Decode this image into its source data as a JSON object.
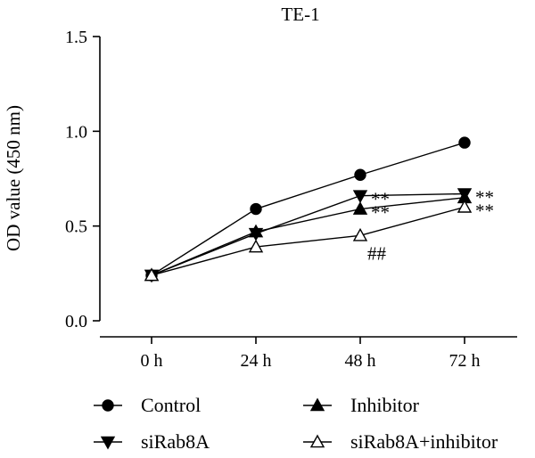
{
  "chart_data": {
    "type": "line",
    "title": "TE-1",
    "xlabel": "",
    "ylabel": "OD value (450 nm)",
    "categories": [
      "0 h",
      "24 h",
      "48 h",
      "72 h"
    ],
    "ylim": [
      0.0,
      1.5
    ],
    "yticks": [
      "0.0",
      "0.5",
      "1.0",
      "1.5"
    ],
    "grid": false,
    "legend_position": "bottom",
    "series": [
      {
        "name": "Control",
        "marker": "circle",
        "filled": true,
        "values": [
          0.24,
          0.59,
          0.77,
          0.94
        ]
      },
      {
        "name": "Inhibitor",
        "marker": "triangle-up",
        "filled": true,
        "values": [
          0.24,
          0.47,
          0.59,
          0.65
        ]
      },
      {
        "name": "siRab8A",
        "marker": "triangle-down",
        "filled": true,
        "values": [
          0.24,
          0.46,
          0.66,
          0.67
        ]
      },
      {
        "name": "siRab8A+inhibitor",
        "marker": "triangle-up",
        "filled": false,
        "values": [
          0.24,
          0.39,
          0.45,
          0.6
        ]
      }
    ],
    "annotations": [
      {
        "category": "48 h",
        "series": "siRab8A",
        "text": "**"
      },
      {
        "category": "48 h",
        "series": "Inhibitor",
        "text": "**"
      },
      {
        "category": "48 h",
        "series": "siRab8A+inhibitor",
        "text": "##"
      },
      {
        "category": "72 h",
        "series": "siRab8A",
        "text": "**"
      },
      {
        "category": "72 h",
        "series": "siRab8A+inhibitor",
        "text": "**"
      }
    ]
  }
}
